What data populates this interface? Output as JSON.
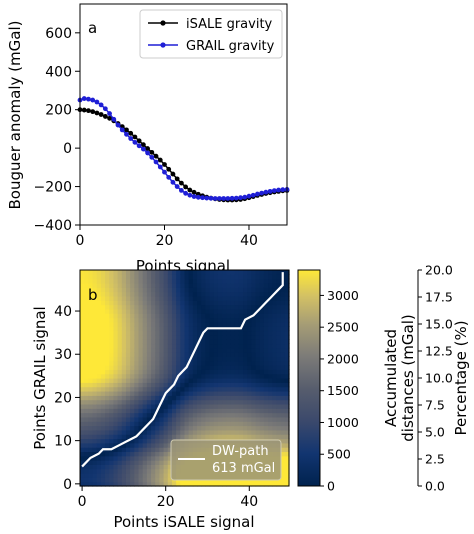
{
  "chart_data": [
    {
      "type": "line",
      "panel_label": "a",
      "xlabel": "Points signal",
      "ylabel": "Bouguer anomaly (mGal)",
      "xlim": [
        0,
        49
      ],
      "ylim": [
        -400,
        750
      ],
      "xticks": [
        0,
        20,
        40
      ],
      "yticks": [
        -400,
        -200,
        0,
        200,
        400,
        600
      ],
      "legend_position": "top-right",
      "grid": false,
      "x": [
        0,
        1,
        2,
        3,
        4,
        5,
        6,
        7,
        8,
        9,
        10,
        11,
        12,
        13,
        14,
        15,
        16,
        17,
        18,
        19,
        20,
        21,
        22,
        23,
        24,
        25,
        26,
        27,
        28,
        29,
        30,
        31,
        32,
        33,
        34,
        35,
        36,
        37,
        38,
        39,
        40,
        41,
        42,
        43,
        44,
        45,
        46,
        47,
        48,
        49
      ],
      "series": [
        {
          "name": "iSALE gravity",
          "color": "#000000",
          "values": [
            200,
            198,
            195,
            190,
            183,
            175,
            165,
            155,
            142,
            128,
            112,
            95,
            77,
            58,
            38,
            18,
            -2,
            -22,
            -42,
            -62,
            -85,
            -110,
            -135,
            -160,
            -182,
            -202,
            -218,
            -230,
            -240,
            -248,
            -255,
            -260,
            -264,
            -267,
            -269,
            -270,
            -270,
            -269,
            -267,
            -263,
            -258,
            -252,
            -246,
            -241,
            -236,
            -232,
            -228,
            -225,
            -222,
            -220
          ]
        },
        {
          "name": "GRAIL gravity",
          "color": "#1f1fd6",
          "values": [
            250,
            258,
            255,
            250,
            240,
            225,
            205,
            180,
            150,
            120,
            95,
            72,
            50,
            30,
            12,
            -5,
            -25,
            -48,
            -72,
            -98,
            -125,
            -152,
            -178,
            -200,
            -220,
            -235,
            -245,
            -252,
            -256,
            -258,
            -260,
            -261,
            -262,
            -262,
            -262,
            -262,
            -261,
            -260,
            -258,
            -255,
            -250,
            -245,
            -239,
            -234,
            -229,
            -225,
            -221,
            -218,
            -216,
            -215
          ]
        }
      ]
    },
    {
      "type": "heatmap",
      "panel_label": "b",
      "xlabel": "Points iSALE signal",
      "ylabel": "Points GRAIL signal",
      "xlim": [
        0,
        49
      ],
      "ylim": [
        0,
        49
      ],
      "xticks": [
        0,
        20,
        40
      ],
      "yticks": [
        0,
        10,
        20,
        30,
        40
      ],
      "colormap": "cividis",
      "colorbar": {
        "label": "Accumulated distances (mGal)",
        "label_lines": [
          "Accumulated",
          "distances (mGal)"
        ],
        "range": [
          0,
          3400
        ],
        "ticks": [
          0,
          500,
          1000,
          1500,
          2000,
          2500,
          3000
        ]
      },
      "secondary_axis": {
        "label": "Percentage (%)",
        "range": [
          0,
          20
        ],
        "ticks": [
          "0.0",
          "2.5",
          "5.0",
          "7.5",
          "10.0",
          "12.5",
          "15.0",
          "17.5",
          "20.0"
        ]
      },
      "path": {
        "name": "DW-path",
        "value": "613 mGal",
        "color": "#ffffff",
        "points": [
          [
            0,
            4
          ],
          [
            2,
            6
          ],
          [
            4,
            7
          ],
          [
            5,
            8
          ],
          [
            7,
            8
          ],
          [
            9,
            9
          ],
          [
            11,
            10
          ],
          [
            13,
            11
          ],
          [
            14,
            12
          ],
          [
            15,
            13
          ],
          [
            16,
            14
          ],
          [
            17,
            15
          ],
          [
            18,
            17
          ],
          [
            19,
            19
          ],
          [
            20,
            21
          ],
          [
            21,
            22
          ],
          [
            22,
            23
          ],
          [
            23,
            25
          ],
          [
            24,
            26
          ],
          [
            25,
            27
          ],
          [
            26,
            29
          ],
          [
            27,
            31
          ],
          [
            28,
            33
          ],
          [
            29,
            35
          ],
          [
            30,
            36
          ],
          [
            33,
            36
          ],
          [
            36,
            36
          ],
          [
            38,
            36
          ],
          [
            39,
            38
          ],
          [
            41,
            39
          ],
          [
            43,
            41
          ],
          [
            44,
            42
          ],
          [
            45,
            43
          ],
          [
            46,
            44
          ],
          [
            47,
            45
          ],
          [
            48,
            46
          ],
          [
            48,
            49
          ]
        ]
      }
    }
  ],
  "legend_b": {
    "line1": "DW-path",
    "line2": "613 mGal"
  }
}
